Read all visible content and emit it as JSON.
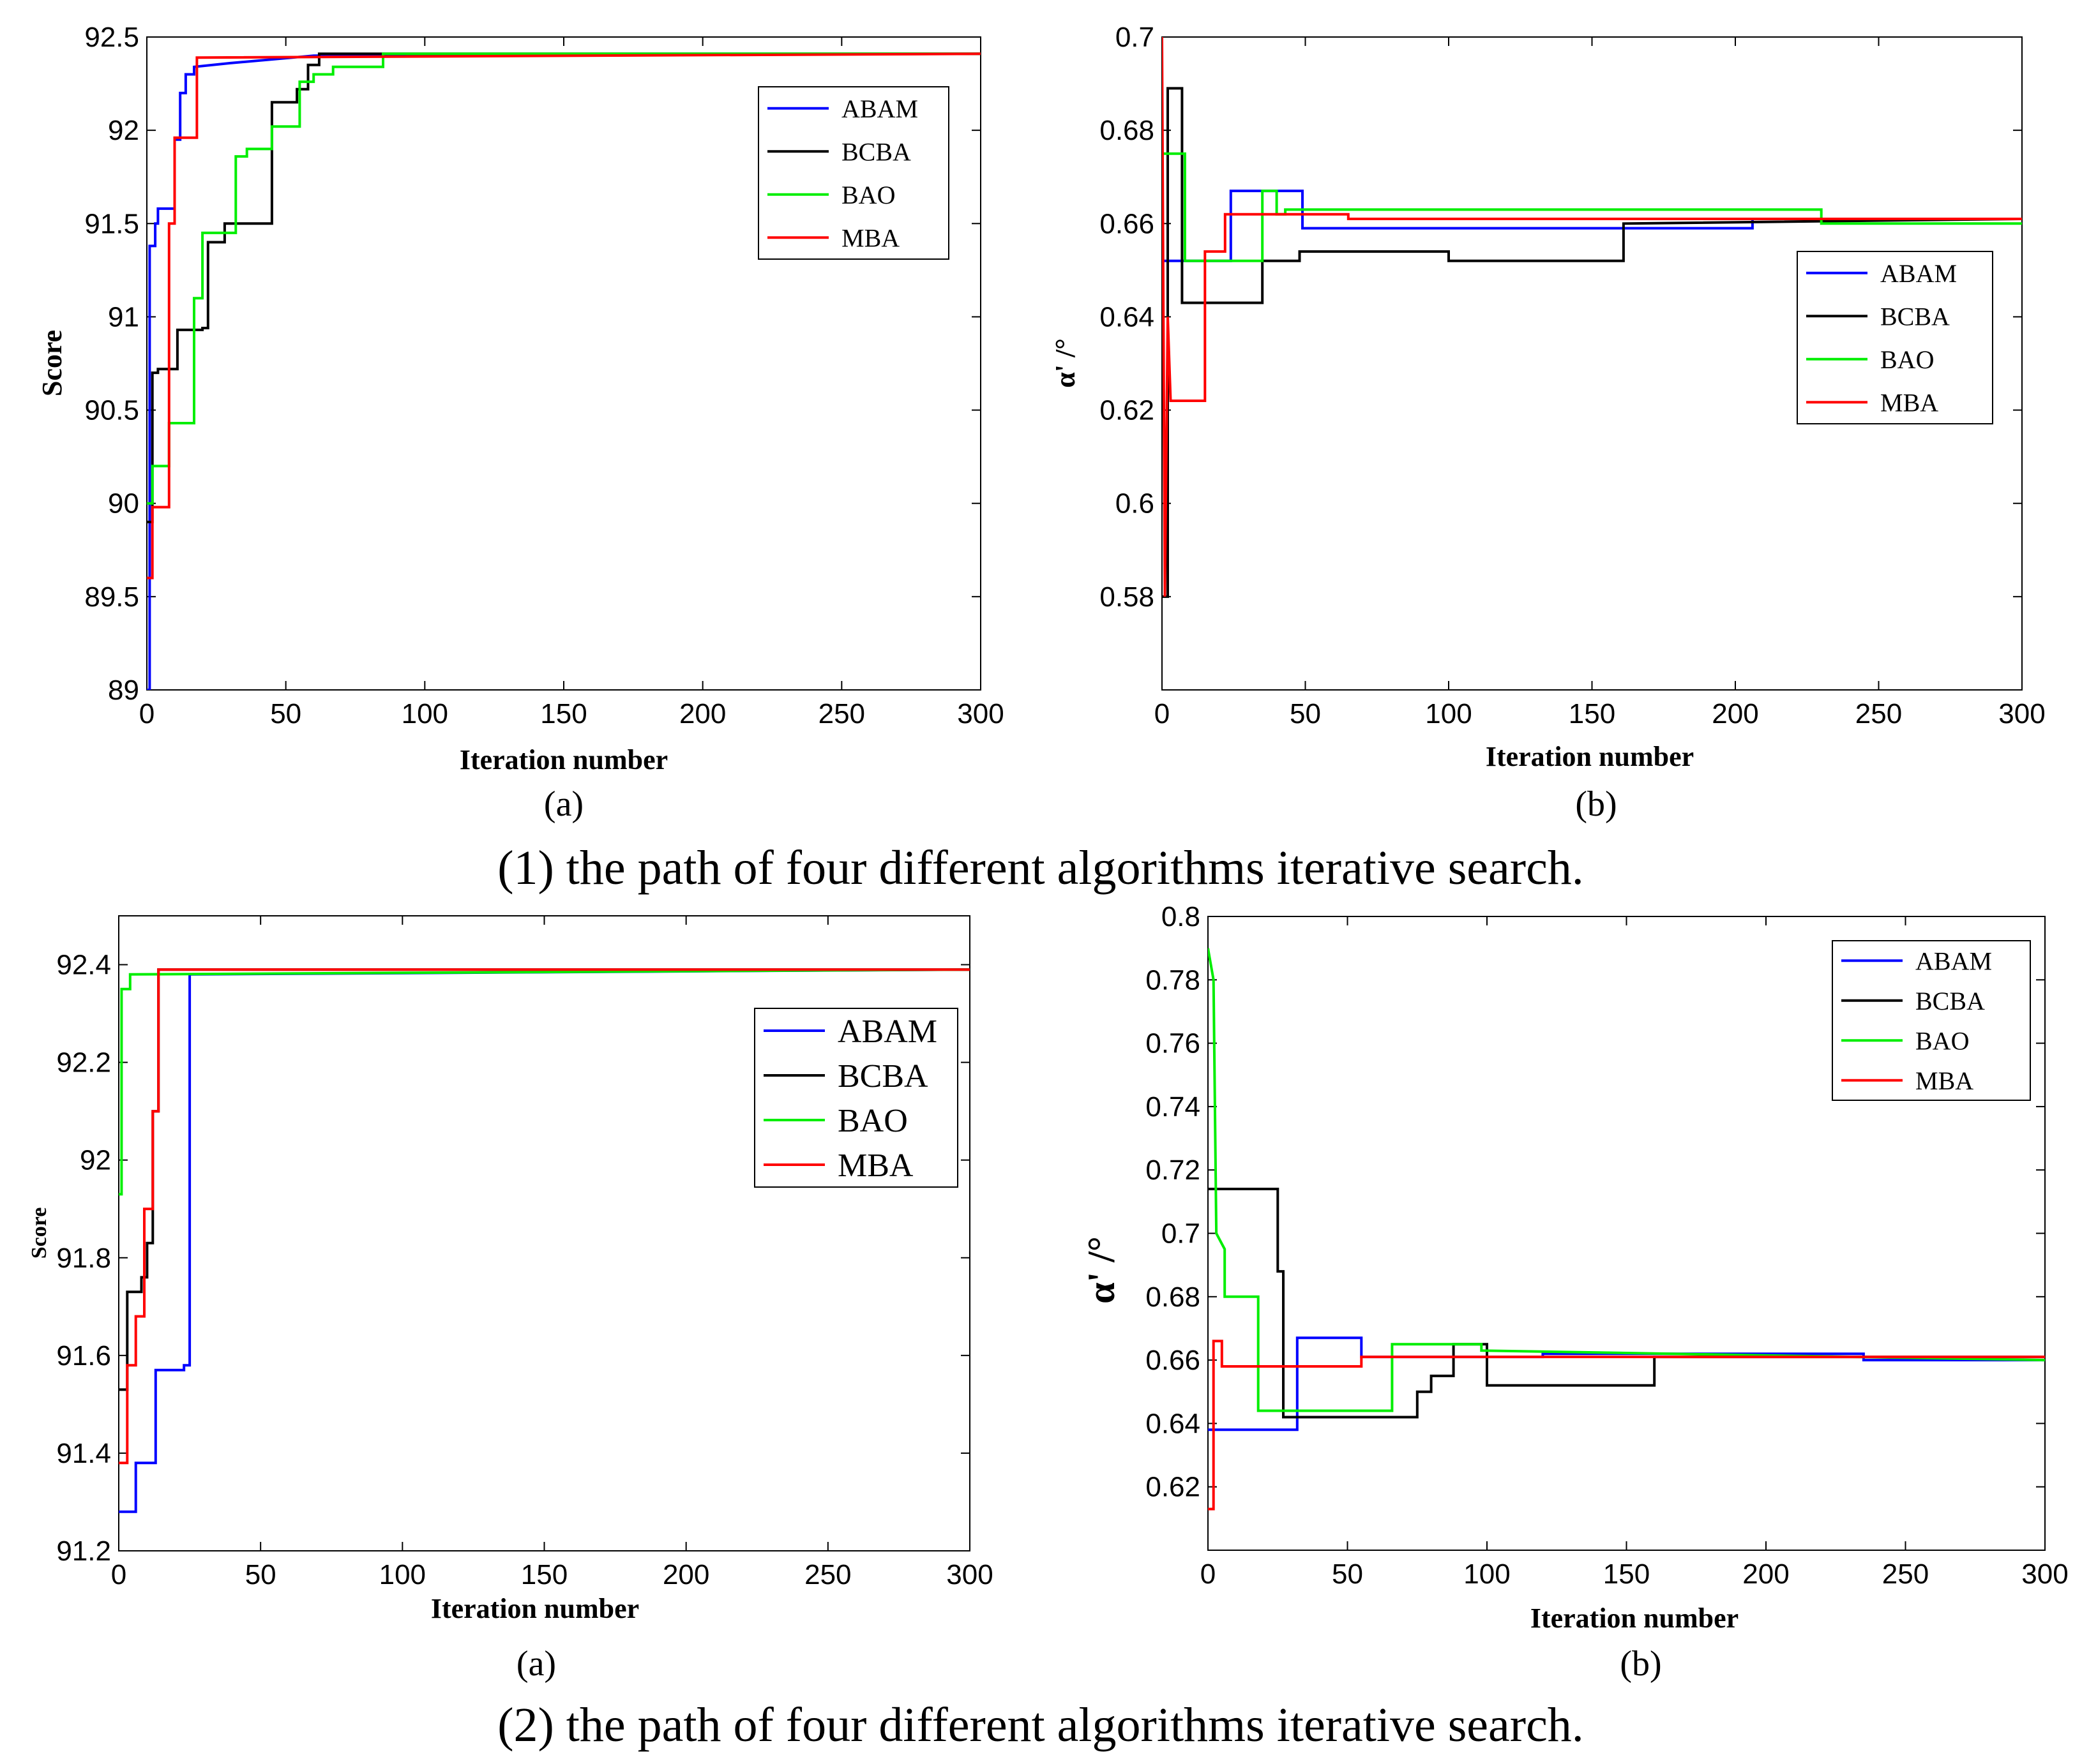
{
  "figure": {
    "row_captions": [
      "(1) the path of four different algorithms iterative search.",
      "(2) the path of four different algorithms iterative search."
    ]
  },
  "series_colors": {
    "ABAM": "#0000ff",
    "BCBA": "#000000",
    "BAO": "#00ee00",
    "MBA": "#ff0000"
  },
  "chart_data": [
    {
      "type": "line",
      "panel": "(a)",
      "row": 1,
      "xlabel": "Iteration number",
      "ylabel": "Score",
      "xlim": [
        0,
        300
      ],
      "ylim": [
        89,
        92.5
      ],
      "xticks": [
        0,
        50,
        100,
        150,
        200,
        250,
        300
      ],
      "yticks": [
        89,
        89.5,
        90,
        90.5,
        91,
        91.5,
        92,
        92.5
      ],
      "ytick_labels": [
        "89",
        "89.5",
        "90",
        "90.5",
        "91",
        "91.5",
        "92",
        "92.5"
      ],
      "legend": [
        "ABAM",
        "BCBA",
        "BAO",
        "MBA"
      ],
      "legend_position": "top-right",
      "series": [
        {
          "name": "ABAM",
          "x": [
            0,
            1,
            1,
            3,
            3,
            4,
            4,
            10,
            10,
            12,
            12,
            14,
            14,
            17,
            17,
            30,
            60,
            300
          ],
          "y": [
            89,
            89,
            91.38,
            91.38,
            91.5,
            91.5,
            91.58,
            91.58,
            91.95,
            91.95,
            92.2,
            92.2,
            92.3,
            92.3,
            92.34,
            92.36,
            92.4,
            92.41
          ]
        },
        {
          "name": "BCBA",
          "x": [
            0,
            2,
            2,
            4,
            4,
            11,
            11,
            20,
            20,
            22,
            22,
            28,
            28,
            45,
            45,
            54,
            54,
            58,
            58,
            62,
            62,
            300
          ],
          "y": [
            89.9,
            89.9,
            90.7,
            90.7,
            90.72,
            90.72,
            90.93,
            90.93,
            90.94,
            90.94,
            91.4,
            91.4,
            91.5,
            91.5,
            92.15,
            92.15,
            92.22,
            92.22,
            92.35,
            92.35,
            92.41,
            92.41
          ]
        },
        {
          "name": "BAO",
          "x": [
            0,
            2,
            2,
            8,
            8,
            17,
            17,
            20,
            20,
            32,
            32,
            36,
            36,
            45,
            45,
            55,
            55,
            60,
            60,
            67,
            67,
            85,
            85,
            300
          ],
          "y": [
            90,
            90,
            90.2,
            90.2,
            90.43,
            90.43,
            91.1,
            91.1,
            91.45,
            91.45,
            91.86,
            91.86,
            91.9,
            91.9,
            92.02,
            92.02,
            92.26,
            92.26,
            92.3,
            92.3,
            92.34,
            92.34,
            92.41,
            92.41
          ]
        },
        {
          "name": "MBA",
          "x": [
            0,
            2,
            2,
            8,
            8,
            10,
            10,
            18,
            18,
            300
          ],
          "y": [
            89.6,
            89.6,
            89.98,
            89.98,
            91.5,
            91.5,
            91.96,
            91.96,
            92.39,
            92.41
          ]
        }
      ]
    },
    {
      "type": "line",
      "panel": "(b)",
      "row": 1,
      "xlabel": "Iteration number",
      "ylabel": "α' /°",
      "xlim": [
        0,
        300
      ],
      "ylim": [
        0.56,
        0.7
      ],
      "xticks": [
        0,
        50,
        100,
        150,
        200,
        250,
        300
      ],
      "yticks": [
        0.58,
        0.6,
        0.62,
        0.64,
        0.66,
        0.68,
        0.7
      ],
      "ytick_labels": [
        "0.58",
        "0.6",
        "0.62",
        "0.64",
        "0.66",
        "0.68",
        "0.7"
      ],
      "legend": [
        "ABAM",
        "BCBA",
        "BAO",
        "MBA"
      ],
      "legend_position": "center-right",
      "series": [
        {
          "name": "ABAM",
          "x": [
            0,
            24,
            24,
            49,
            49,
            206,
            206,
            300
          ],
          "y": [
            0.652,
            0.652,
            0.667,
            0.667,
            0.659,
            0.659,
            0.661,
            0.661
          ]
        },
        {
          "name": "BCBA",
          "x": [
            0,
            2,
            2,
            7,
            7,
            35,
            35,
            48,
            48,
            100,
            100,
            161,
            161,
            300
          ],
          "y": [
            0.58,
            0.58,
            0.689,
            0.689,
            0.643,
            0.643,
            0.652,
            0.652,
            0.654,
            0.654,
            0.652,
            0.652,
            0.66,
            0.661
          ]
        },
        {
          "name": "BAO",
          "x": [
            0,
            8,
            8,
            17,
            17,
            35,
            35,
            40,
            40,
            43,
            43,
            230,
            230,
            300
          ],
          "y": [
            0.675,
            0.675,
            0.652,
            0.652,
            0.652,
            0.652,
            0.667,
            0.667,
            0.662,
            0.662,
            0.663,
            0.663,
            0.66,
            0.66
          ]
        },
        {
          "name": "MBA",
          "x": [
            0,
            1,
            2,
            3,
            3,
            15,
            15,
            22,
            22,
            65,
            65,
            300
          ],
          "y": [
            0.7,
            0.58,
            0.64,
            0.622,
            0.622,
            0.622,
            0.654,
            0.654,
            0.662,
            0.662,
            0.661,
            0.661
          ]
        }
      ]
    },
    {
      "type": "line",
      "panel": "(a)",
      "row": 2,
      "xlabel": "Iteration number",
      "ylabel": "Score",
      "xlim": [
        0,
        300
      ],
      "ylim": [
        91.2,
        92.5
      ],
      "xticks": [
        0,
        50,
        100,
        150,
        200,
        250,
        300
      ],
      "yticks": [
        91.2,
        91.4,
        91.6,
        91.8,
        92,
        92.2,
        92.4
      ],
      "ytick_labels": [
        "91.2",
        "91.4",
        "91.6",
        "91.8",
        "92",
        "92.2",
        "92.4"
      ],
      "legend": [
        "ABAM",
        "BCBA",
        "BAO",
        "MBA"
      ],
      "legend_position": "top-right",
      "series": [
        {
          "name": "ABAM",
          "x": [
            0,
            6,
            6,
            13,
            13,
            23,
            23,
            25,
            25,
            300
          ],
          "y": [
            91.28,
            91.28,
            91.38,
            91.38,
            91.57,
            91.57,
            91.58,
            91.58,
            92.38,
            92.39
          ]
        },
        {
          "name": "BCBA",
          "x": [
            0,
            3,
            3,
            8,
            8,
            10,
            10,
            12,
            12,
            14,
            14,
            300
          ],
          "y": [
            91.53,
            91.53,
            91.73,
            91.73,
            91.76,
            91.76,
            91.83,
            91.83,
            92.1,
            92.1,
            92.39,
            92.39
          ]
        },
        {
          "name": "BAO",
          "x": [
            0,
            1,
            1,
            4,
            4,
            300
          ],
          "y": [
            91.93,
            91.93,
            92.35,
            92.35,
            92.38,
            92.39
          ]
        },
        {
          "name": "MBA",
          "x": [
            0,
            3,
            3,
            6,
            6,
            9,
            9,
            12,
            12,
            14,
            14,
            300
          ],
          "y": [
            91.38,
            91.38,
            91.58,
            91.58,
            91.68,
            91.68,
            91.9,
            91.9,
            92.1,
            92.1,
            92.39,
            92.39
          ]
        }
      ]
    },
    {
      "type": "line",
      "panel": "(b)",
      "row": 2,
      "xlabel": "Iteration number",
      "ylabel": "α' /°",
      "xlim": [
        0,
        300
      ],
      "ylim": [
        0.6,
        0.8
      ],
      "xticks": [
        0,
        50,
        100,
        150,
        200,
        250,
        300
      ],
      "yticks": [
        0.62,
        0.64,
        0.66,
        0.68,
        0.7,
        0.72,
        0.74,
        0.76,
        0.78,
        0.8
      ],
      "ytick_labels": [
        "0.62",
        "0.64",
        "0.66",
        "0.68",
        "0.7",
        "0.72",
        "0.74",
        "0.76",
        "0.78",
        "0.8"
      ],
      "legend": [
        "ABAM",
        "BCBA",
        "BAO",
        "MBA"
      ],
      "legend_position": "top-right",
      "series": [
        {
          "name": "ABAM",
          "x": [
            0,
            32,
            32,
            55,
            55,
            120,
            120,
            235,
            235,
            300
          ],
          "y": [
            0.638,
            0.638,
            0.667,
            0.667,
            0.661,
            0.661,
            0.662,
            0.662,
            0.66,
            0.66
          ]
        },
        {
          "name": "BCBA",
          "x": [
            0,
            25,
            25,
            27,
            27,
            75,
            75,
            80,
            80,
            88,
            88,
            100,
            100,
            160,
            160,
            300
          ],
          "y": [
            0.714,
            0.714,
            0.688,
            0.688,
            0.642,
            0.642,
            0.65,
            0.65,
            0.655,
            0.655,
            0.665,
            0.665,
            0.652,
            0.652,
            0.661,
            0.661
          ]
        },
        {
          "name": "BAO",
          "x": [
            0,
            2,
            3,
            6,
            6,
            18,
            18,
            66,
            66,
            98,
            98,
            300
          ],
          "y": [
            0.79,
            0.78,
            0.7,
            0.695,
            0.68,
            0.68,
            0.644,
            0.644,
            0.665,
            0.665,
            0.663,
            0.66
          ]
        },
        {
          "name": "MBA",
          "x": [
            0,
            2,
            2,
            5,
            5,
            55,
            55,
            300
          ],
          "y": [
            0.613,
            0.613,
            0.666,
            0.666,
            0.658,
            0.658,
            0.661,
            0.661
          ]
        }
      ]
    }
  ]
}
